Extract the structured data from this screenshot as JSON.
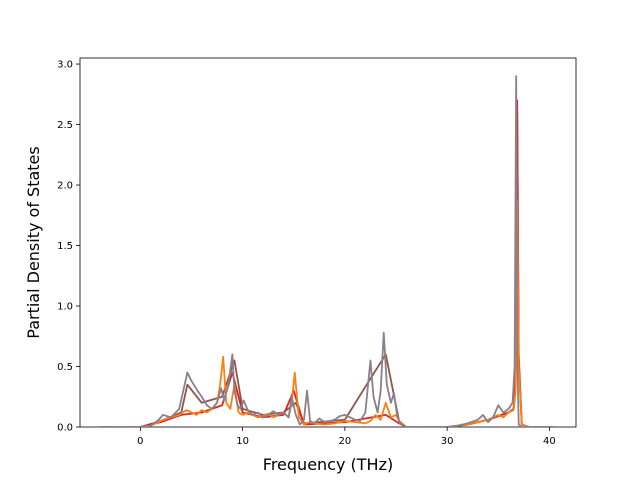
{
  "chart_data": {
    "type": "line",
    "title": "",
    "xlabel": "Frequency (THz)",
    "ylabel": "Partial Density of States",
    "xlim": [
      -5.9,
      42.6
    ],
    "ylim": [
      0.0,
      3.05
    ],
    "xticks": [
      0,
      10,
      20,
      30,
      40
    ],
    "xtick_labels": [
      "0",
      "10",
      "20",
      "30",
      "40"
    ],
    "yticks": [
      0.0,
      0.5,
      1.0,
      1.5,
      2.0,
      2.5,
      3.0
    ],
    "ytick_labels": [
      "0.0",
      "0.5",
      "1.0",
      "1.5",
      "2.0",
      "2.5",
      "3.0"
    ],
    "grid": false,
    "legend": "none",
    "series": [
      {
        "color": "#8c7f8c",
        "x": [
          -4,
          0,
          1,
          1.8,
          2.2,
          3,
          3.8,
          4.2,
          4.6,
          5,
          5.6,
          6,
          6.5,
          7,
          7.5,
          7.9,
          8.2,
          8.6,
          9,
          9.2,
          9.5,
          9.8,
          10.1,
          10.5,
          11,
          11.5,
          12,
          12.5,
          13,
          13.5,
          14,
          14.5,
          14.8,
          15.2,
          15.6,
          16,
          16.3,
          16.6,
          17,
          17.5,
          18,
          18.5,
          19,
          19.5,
          20,
          20.5,
          21,
          21.5,
          22,
          22.5,
          22.8,
          23.2,
          23.5,
          23.8,
          24.1,
          24.5,
          24.8,
          25.1,
          25.4,
          26,
          28,
          30,
          31,
          32,
          33,
          33.5,
          34,
          34.5,
          35,
          35.5,
          36,
          36.4,
          36.6,
          36.75,
          36.85,
          37,
          37.3,
          38,
          40.5
        ],
        "y": [
          0,
          0,
          0.01,
          0.06,
          0.1,
          0.08,
          0.15,
          0.3,
          0.45,
          0.38,
          0.3,
          0.25,
          0.18,
          0.15,
          0.2,
          0.32,
          0.22,
          0.35,
          0.6,
          0.3,
          0.18,
          0.15,
          0.22,
          0.14,
          0.1,
          0.12,
          0.08,
          0.1,
          0.13,
          0.1,
          0.12,
          0.08,
          0.25,
          0.1,
          0.02,
          0.06,
          0.3,
          0.05,
          0.03,
          0.07,
          0.04,
          0.05,
          0.06,
          0.09,
          0.1,
          0.08,
          0.06,
          0.05,
          0.12,
          0.55,
          0.25,
          0.12,
          0.3,
          0.78,
          0.35,
          0.2,
          0.28,
          0.1,
          0.03,
          0,
          0,
          0,
          0.01,
          0.03,
          0.06,
          0.1,
          0.04,
          0.08,
          0.18,
          0.12,
          0.15,
          0.2,
          0.5,
          2.9,
          0.6,
          0.02,
          0,
          0,
          0
        ]
      },
      {
        "color": "#ff7f0e",
        "x": [
          -4,
          0,
          1,
          2,
          3,
          3.8,
          4.5,
          5,
          5.5,
          6,
          6.5,
          7,
          7.5,
          7.8,
          8.1,
          8.4,
          8.8,
          9.2,
          9.6,
          10,
          10.5,
          11,
          11.5,
          12,
          12.5,
          13,
          13.5,
          14,
          14.5,
          14.8,
          15.1,
          15.5,
          16,
          16.5,
          17,
          18,
          19,
          20,
          21,
          22,
          22.5,
          23,
          23.5,
          24,
          24.5,
          25,
          25.3,
          26,
          28,
          30,
          31,
          32,
          33,
          34,
          35,
          35.5,
          36,
          36.5,
          36.7,
          36.85,
          37,
          37.3,
          38,
          40.5
        ],
        "y": [
          0,
          0,
          0.01,
          0.05,
          0.08,
          0.1,
          0.14,
          0.12,
          0.1,
          0.14,
          0.12,
          0.15,
          0.2,
          0.35,
          0.58,
          0.2,
          0.15,
          0.35,
          0.12,
          0.1,
          0.12,
          0.1,
          0.08,
          0.09,
          0.11,
          0.08,
          0.1,
          0.12,
          0.08,
          0.2,
          0.45,
          0.08,
          0.02,
          0.04,
          0.03,
          0.02,
          0.03,
          0.05,
          0.04,
          0.03,
          0.05,
          0.1,
          0.06,
          0.2,
          0.08,
          0.1,
          0.05,
          0,
          0,
          0,
          0.01,
          0.02,
          0.04,
          0.06,
          0.1,
          0.08,
          0.12,
          0.14,
          0.3,
          1.87,
          0.5,
          0.02,
          0,
          0
        ]
      },
      {
        "color": "#d62728",
        "x": [
          -4,
          0,
          2,
          4,
          6,
          8,
          9,
          10,
          12,
          14,
          15,
          16,
          20,
          24,
          25.3,
          26,
          30,
          32,
          34,
          36,
          36.5,
          36.7,
          36.85,
          37,
          37.3,
          38,
          40.5
        ],
        "y": [
          0,
          0,
          0.04,
          0.1,
          0.12,
          0.18,
          0.45,
          0.12,
          0.08,
          0.1,
          0.3,
          0.02,
          0.04,
          0.1,
          0.03,
          0,
          0,
          0.02,
          0.06,
          0.12,
          0.15,
          0.4,
          2.7,
          0.6,
          0.02,
          0,
          0
        ]
      },
      {
        "color": "#8c564b",
        "x": [
          -4,
          0,
          2,
          4,
          4.6,
          6,
          8,
          9.2,
          10,
          12,
          14,
          15.2,
          16,
          20,
          22.5,
          24,
          25.3,
          26,
          30,
          32,
          34,
          36,
          36.5,
          36.7,
          36.85,
          37,
          37.3,
          38,
          40.5
        ],
        "y": [
          0,
          0,
          0.05,
          0.12,
          0.35,
          0.2,
          0.25,
          0.55,
          0.15,
          0.1,
          0.12,
          0.2,
          0.03,
          0.06,
          0.4,
          0.6,
          0.05,
          0,
          0,
          0.02,
          0.06,
          0.12,
          0.15,
          0.45,
          2.6,
          0.55,
          0.02,
          0,
          0
        ]
      }
    ]
  }
}
